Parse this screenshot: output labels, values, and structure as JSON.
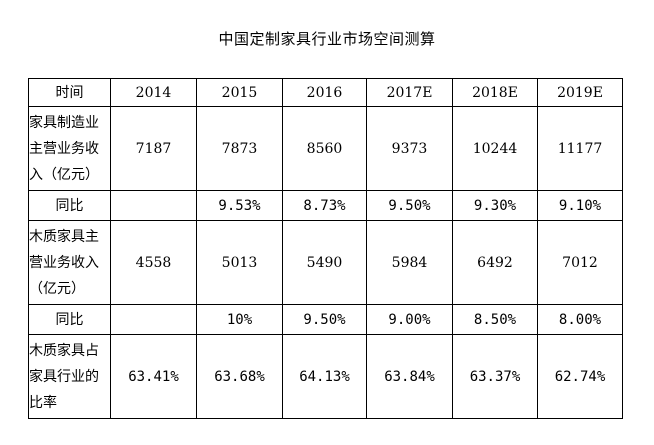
{
  "title": "中国定制家具行业市场空间测算",
  "table": {
    "header": {
      "label": "时间",
      "years": [
        "2014",
        "2015",
        "2016",
        "2017E",
        "2018E",
        "2019E"
      ]
    },
    "rows": [
      {
        "label_lines": [
          "家具制造业",
          "主营业务收",
          "入（亿元）"
        ],
        "values": [
          "7187",
          "7873",
          "8560",
          "9373",
          "10244",
          "11177"
        ]
      },
      {
        "label_lines": [
          "同比"
        ],
        "values": [
          "",
          "9.53%",
          "8.73%",
          "9.50%",
          "9.30%",
          "9.10%"
        ]
      },
      {
        "label_lines": [
          "木质家具主",
          "营业务收入",
          "（亿元）"
        ],
        "values": [
          "4558",
          "5013",
          "5490",
          "5984",
          "6492",
          "7012"
        ]
      },
      {
        "label_lines": [
          "同比"
        ],
        "values": [
          "",
          "10%",
          "9.50%",
          "9.00%",
          "8.50%",
          "8.00%"
        ]
      },
      {
        "label_lines": [
          "木质家具占",
          "家具行业的",
          "比率"
        ],
        "values": [
          "63.41%",
          "63.68%",
          "64.13%",
          "63.84%",
          "63.37%",
          "62.74%"
        ]
      }
    ]
  }
}
